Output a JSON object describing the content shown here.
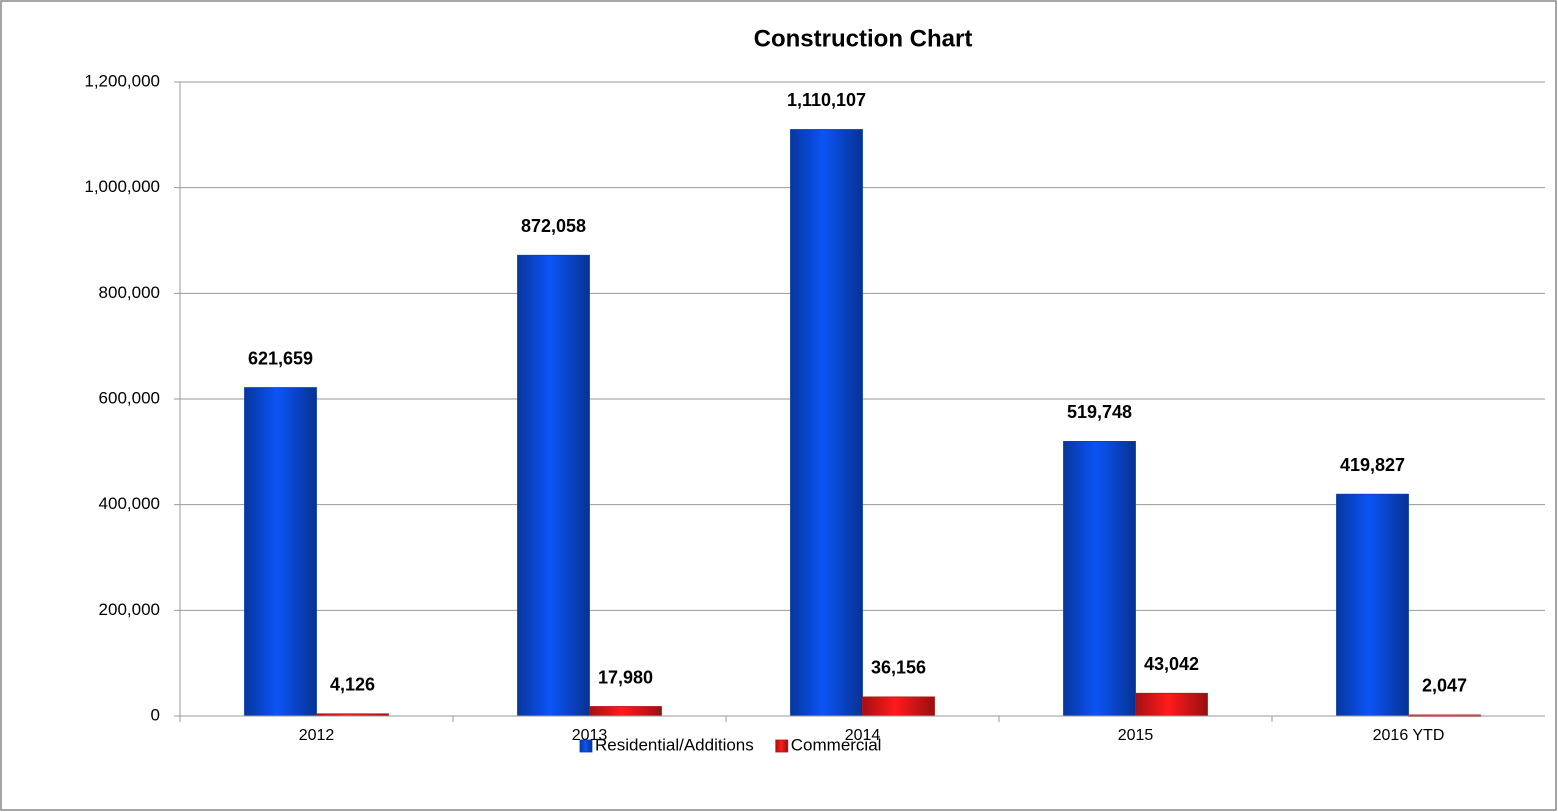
{
  "chart_data": {
    "type": "bar",
    "title": "Construction Chart",
    "categories": [
      "2012",
      "2013",
      "2014",
      "2015",
      "2016 YTD"
    ],
    "series": [
      {
        "name": "Residential/Additions",
        "color": "#0a4de0",
        "values": [
          621659,
          872058,
          1110107,
          519748,
          419827
        ],
        "value_labels": [
          "621,659",
          "872,058",
          "1,110,107",
          "519,748",
          "419,827"
        ]
      },
      {
        "name": "Commercial",
        "color": "#e8181a",
        "values": [
          4126,
          17980,
          36156,
          43042,
          2047
        ],
        "value_labels": [
          "4,126",
          "17,980",
          "36,156",
          "43,042",
          "2,047"
        ]
      }
    ],
    "ylim": [
      0,
      1200000
    ],
    "yticks": [
      0,
      {
        "value": 200000,
        "label": "200,000"
      },
      {
        "value": 400000,
        "label": "400,000"
      },
      {
        "value": 600000,
        "label": "600,000"
      },
      {
        "value": 800000,
        "label": "800,000"
      },
      {
        "value": 1000000,
        "label": "1,000,000"
      },
      {
        "value": 1200000,
        "label": "1,200,000"
      }
    ],
    "grid": true,
    "legend": "bottom"
  }
}
